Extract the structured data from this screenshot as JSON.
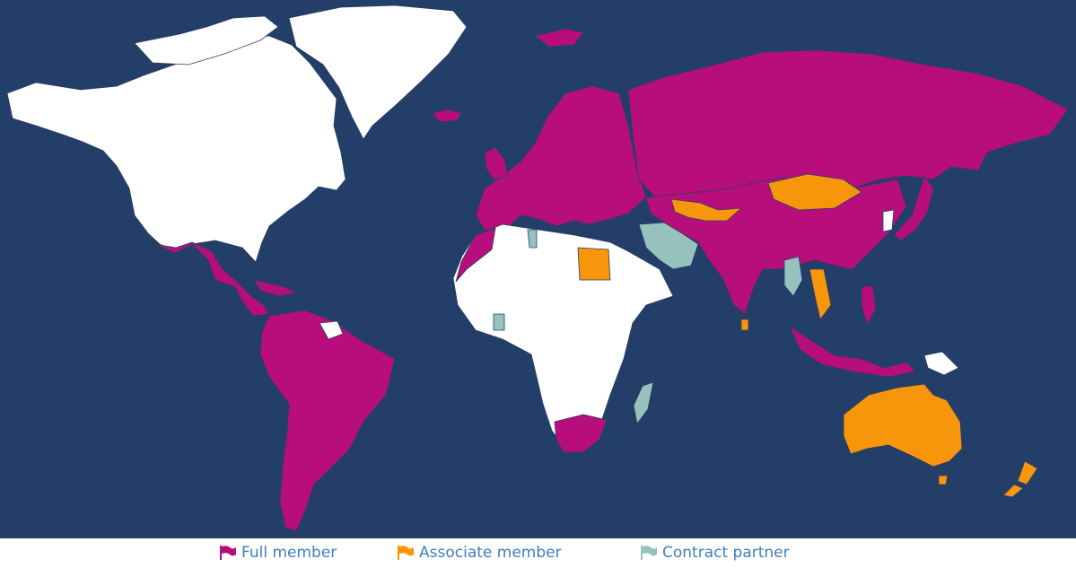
{
  "colors": {
    "ocean": "#233e68",
    "non_member": "#ffffff",
    "full_member": "#b80d7c",
    "associate_member": "#f7960a",
    "contract_partner": "#96c1bd",
    "legend_text": "#3d7fbf"
  },
  "legend": {
    "items": [
      {
        "label": "Full member",
        "icon": "flag-icon",
        "status": "full_member"
      },
      {
        "label": "Associate member",
        "icon": "flag-icon",
        "status": "associate_member"
      },
      {
        "label": "Contract partner",
        "icon": "flag-icon",
        "status": "contract_partner"
      }
    ]
  }
}
